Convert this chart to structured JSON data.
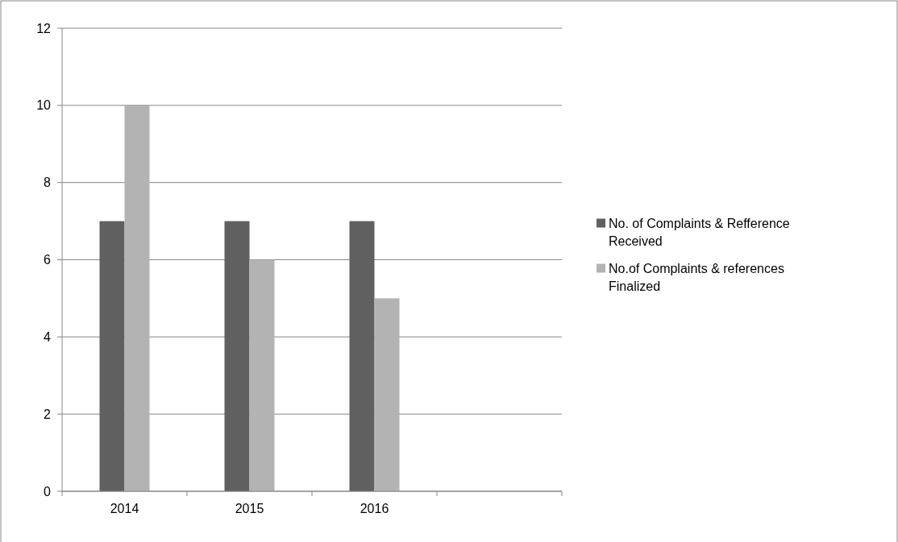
{
  "chart_data": {
    "type": "bar",
    "categories": [
      "2014",
      "2015",
      "2016",
      null
    ],
    "series": [
      {
        "name": "No. of Complaints & Refference Received",
        "color": "#606060",
        "values": [
          7,
          7,
          7,
          null
        ]
      },
      {
        "name": "No.of Complaints & references Finalized",
        "color": "#b3b3b3",
        "values": [
          10,
          6,
          5,
          null
        ]
      }
    ],
    "ylim": [
      0,
      12
    ],
    "yticks": [
      0,
      2,
      4,
      6,
      8,
      10,
      12
    ],
    "grid": "y",
    "legend": "right"
  }
}
